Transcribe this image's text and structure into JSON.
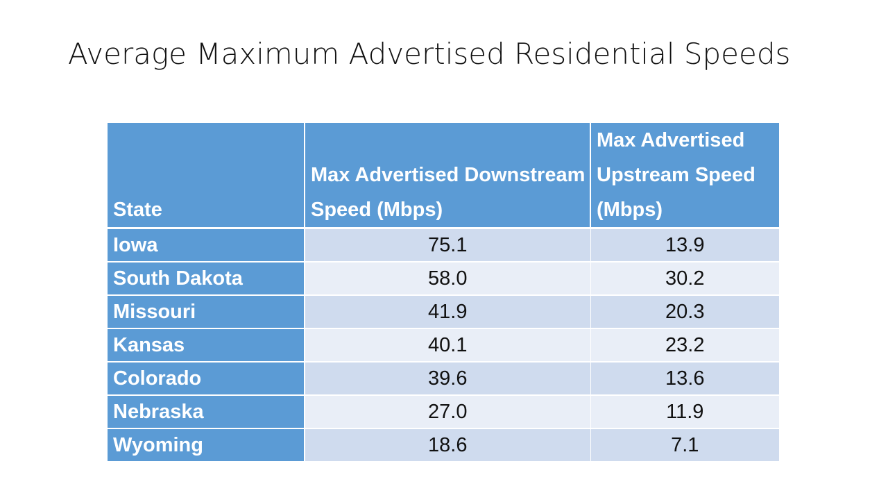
{
  "slide": {
    "title": "Average Maximum Advertised Residential Speeds"
  },
  "table": {
    "headers": {
      "state": "State",
      "downstream": "Max Advertised Downstream Speed (Mbps)",
      "upstream": "Max Advertised Upstream Speed (Mbps)"
    },
    "rows": [
      {
        "state": "Iowa",
        "downstream": "75.1",
        "upstream": "13.9"
      },
      {
        "state": "South Dakota",
        "downstream": "58.0",
        "upstream": "30.2"
      },
      {
        "state": "Missouri",
        "downstream": "41.9",
        "upstream": "20.3"
      },
      {
        "state": "Kansas",
        "downstream": "40.1",
        "upstream": "23.2"
      },
      {
        "state": "Colorado",
        "downstream": "39.6",
        "upstream": "13.6"
      },
      {
        "state": "Nebraska",
        "downstream": "27.0",
        "upstream": "11.9"
      },
      {
        "state": "Wyoming",
        "downstream": "18.6",
        "upstream": "7.1"
      }
    ]
  },
  "colors": {
    "header_fill": "#5b9bd5",
    "row_band_dark": "#cfdbee",
    "row_band_light": "#e9eef7",
    "header_text": "#ffffff",
    "body_text": "#111111"
  },
  "chart_data": {
    "type": "table",
    "title": "Average Maximum Advertised Residential Speeds",
    "columns": [
      "State",
      "Max Advertised Downstream Speed (Mbps)",
      "Max Advertised Upstream Speed (Mbps)"
    ],
    "categories": [
      "Iowa",
      "South Dakota",
      "Missouri",
      "Kansas",
      "Colorado",
      "Nebraska",
      "Wyoming"
    ],
    "series": [
      {
        "name": "Max Advertised Downstream Speed (Mbps)",
        "values": [
          75.1,
          58.0,
          41.9,
          40.1,
          39.6,
          27.0,
          18.6
        ]
      },
      {
        "name": "Max Advertised Upstream Speed (Mbps)",
        "values": [
          13.9,
          30.2,
          20.3,
          23.2,
          13.6,
          11.9,
          7.1
        ]
      }
    ]
  }
}
